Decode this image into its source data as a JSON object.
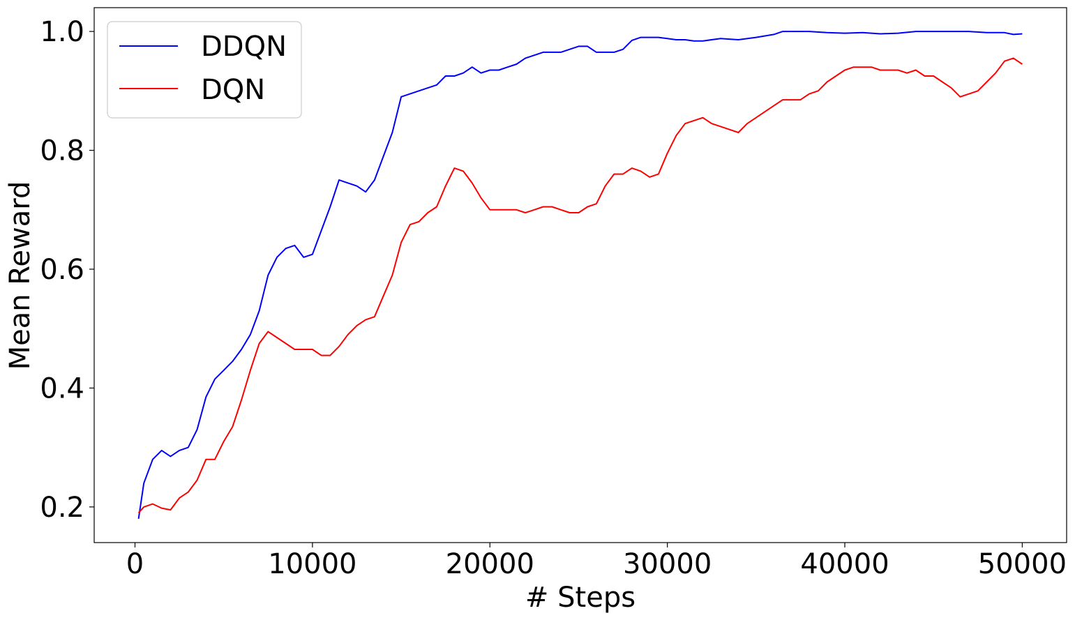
{
  "chart_data": {
    "type": "line",
    "xlabel": "# Steps",
    "ylabel": "Mean Reward",
    "xlim": [
      -2300,
      52500
    ],
    "ylim": [
      0.14,
      1.04
    ],
    "xticks": [
      0,
      10000,
      20000,
      30000,
      40000,
      50000
    ],
    "yticks": [
      0.2,
      0.4,
      0.6,
      0.8,
      1.0
    ],
    "ytick_labels": [
      "0.2",
      "0.4",
      "0.6",
      "0.8",
      "1.0"
    ],
    "grid": false,
    "legend_position": "top-left",
    "series": [
      {
        "name": "DDQN",
        "color": "#0000ff",
        "x": [
          200,
          500,
          1000,
          1500,
          2000,
          2500,
          3000,
          3500,
          4000,
          4500,
          5000,
          5500,
          6000,
          6500,
          7000,
          7500,
          8000,
          8500,
          9000,
          9500,
          10000,
          10500,
          11000,
          11500,
          12000,
          12500,
          13000,
          13500,
          14000,
          14500,
          15000,
          15500,
          16000,
          16500,
          17000,
          17500,
          18000,
          18500,
          19000,
          19500,
          20000,
          20500,
          21000,
          21500,
          22000,
          22500,
          23000,
          23500,
          24000,
          24500,
          25000,
          25500,
          26000,
          26500,
          27000,
          27500,
          28000,
          28500,
          29000,
          29500,
          30000,
          30500,
          31000,
          31500,
          32000,
          33000,
          34000,
          35000,
          36000,
          36500,
          37000,
          38000,
          39000,
          40000,
          41000,
          42000,
          43000,
          44000,
          45000,
          46000,
          47000,
          48000,
          49000,
          49500,
          50000
        ],
        "values": [
          0.18,
          0.24,
          0.28,
          0.295,
          0.285,
          0.295,
          0.3,
          0.33,
          0.385,
          0.415,
          0.43,
          0.445,
          0.465,
          0.49,
          0.53,
          0.59,
          0.62,
          0.635,
          0.64,
          0.62,
          0.625,
          0.665,
          0.705,
          0.75,
          0.745,
          0.74,
          0.73,
          0.75,
          0.79,
          0.83,
          0.89,
          0.895,
          0.9,
          0.905,
          0.91,
          0.925,
          0.925,
          0.93,
          0.94,
          0.93,
          0.935,
          0.935,
          0.94,
          0.945,
          0.955,
          0.96,
          0.965,
          0.965,
          0.965,
          0.97,
          0.975,
          0.975,
          0.965,
          0.965,
          0.965,
          0.97,
          0.985,
          0.99,
          0.99,
          0.99,
          0.988,
          0.986,
          0.986,
          0.984,
          0.984,
          0.988,
          0.986,
          0.99,
          0.995,
          1.0,
          1.0,
          1.0,
          0.998,
          0.997,
          0.998,
          0.996,
          0.997,
          1.0,
          1.0,
          1.0,
          1.0,
          0.998,
          0.998,
          0.995,
          0.996
        ]
      },
      {
        "name": "DQN",
        "color": "#ff0000",
        "x": [
          200,
          500,
          1000,
          1500,
          2000,
          2500,
          3000,
          3500,
          4000,
          4500,
          5000,
          5500,
          6000,
          6500,
          7000,
          7500,
          8000,
          8500,
          9000,
          9500,
          10000,
          10500,
          11000,
          11500,
          12000,
          12500,
          13000,
          13500,
          14000,
          14500,
          15000,
          15500,
          16000,
          16500,
          17000,
          17500,
          18000,
          18500,
          19000,
          19500,
          20000,
          20500,
          21000,
          21500,
          22000,
          22500,
          23000,
          23500,
          24000,
          24500,
          25000,
          25500,
          26000,
          26500,
          27000,
          27500,
          28000,
          28500,
          29000,
          29500,
          30000,
          30500,
          31000,
          31500,
          32000,
          32500,
          33000,
          33500,
          34000,
          34500,
          35000,
          35500,
          36000,
          36500,
          37000,
          37500,
          38000,
          38500,
          39000,
          39500,
          40000,
          40500,
          41000,
          41500,
          42000,
          42500,
          43000,
          43500,
          44000,
          44500,
          45000,
          45500,
          46000,
          46500,
          47000,
          47500,
          48000,
          48500,
          49000,
          49500,
          50000
        ],
        "values": [
          0.19,
          0.2,
          0.205,
          0.198,
          0.195,
          0.215,
          0.225,
          0.245,
          0.28,
          0.28,
          0.31,
          0.335,
          0.38,
          0.43,
          0.475,
          0.495,
          0.485,
          0.475,
          0.465,
          0.465,
          0.465,
          0.455,
          0.455,
          0.47,
          0.49,
          0.505,
          0.515,
          0.52,
          0.555,
          0.59,
          0.645,
          0.675,
          0.68,
          0.695,
          0.705,
          0.74,
          0.77,
          0.765,
          0.745,
          0.72,
          0.7,
          0.7,
          0.7,
          0.7,
          0.695,
          0.7,
          0.705,
          0.705,
          0.7,
          0.695,
          0.695,
          0.705,
          0.71,
          0.74,
          0.76,
          0.76,
          0.77,
          0.765,
          0.755,
          0.76,
          0.795,
          0.825,
          0.845,
          0.85,
          0.855,
          0.845,
          0.84,
          0.835,
          0.83,
          0.845,
          0.855,
          0.865,
          0.875,
          0.885,
          0.885,
          0.885,
          0.895,
          0.9,
          0.915,
          0.925,
          0.935,
          0.94,
          0.94,
          0.94,
          0.935,
          0.935,
          0.935,
          0.93,
          0.935,
          0.925,
          0.925,
          0.915,
          0.905,
          0.89,
          0.895,
          0.9,
          0.915,
          0.93,
          0.95,
          0.955,
          0.945
        ]
      }
    ]
  }
}
